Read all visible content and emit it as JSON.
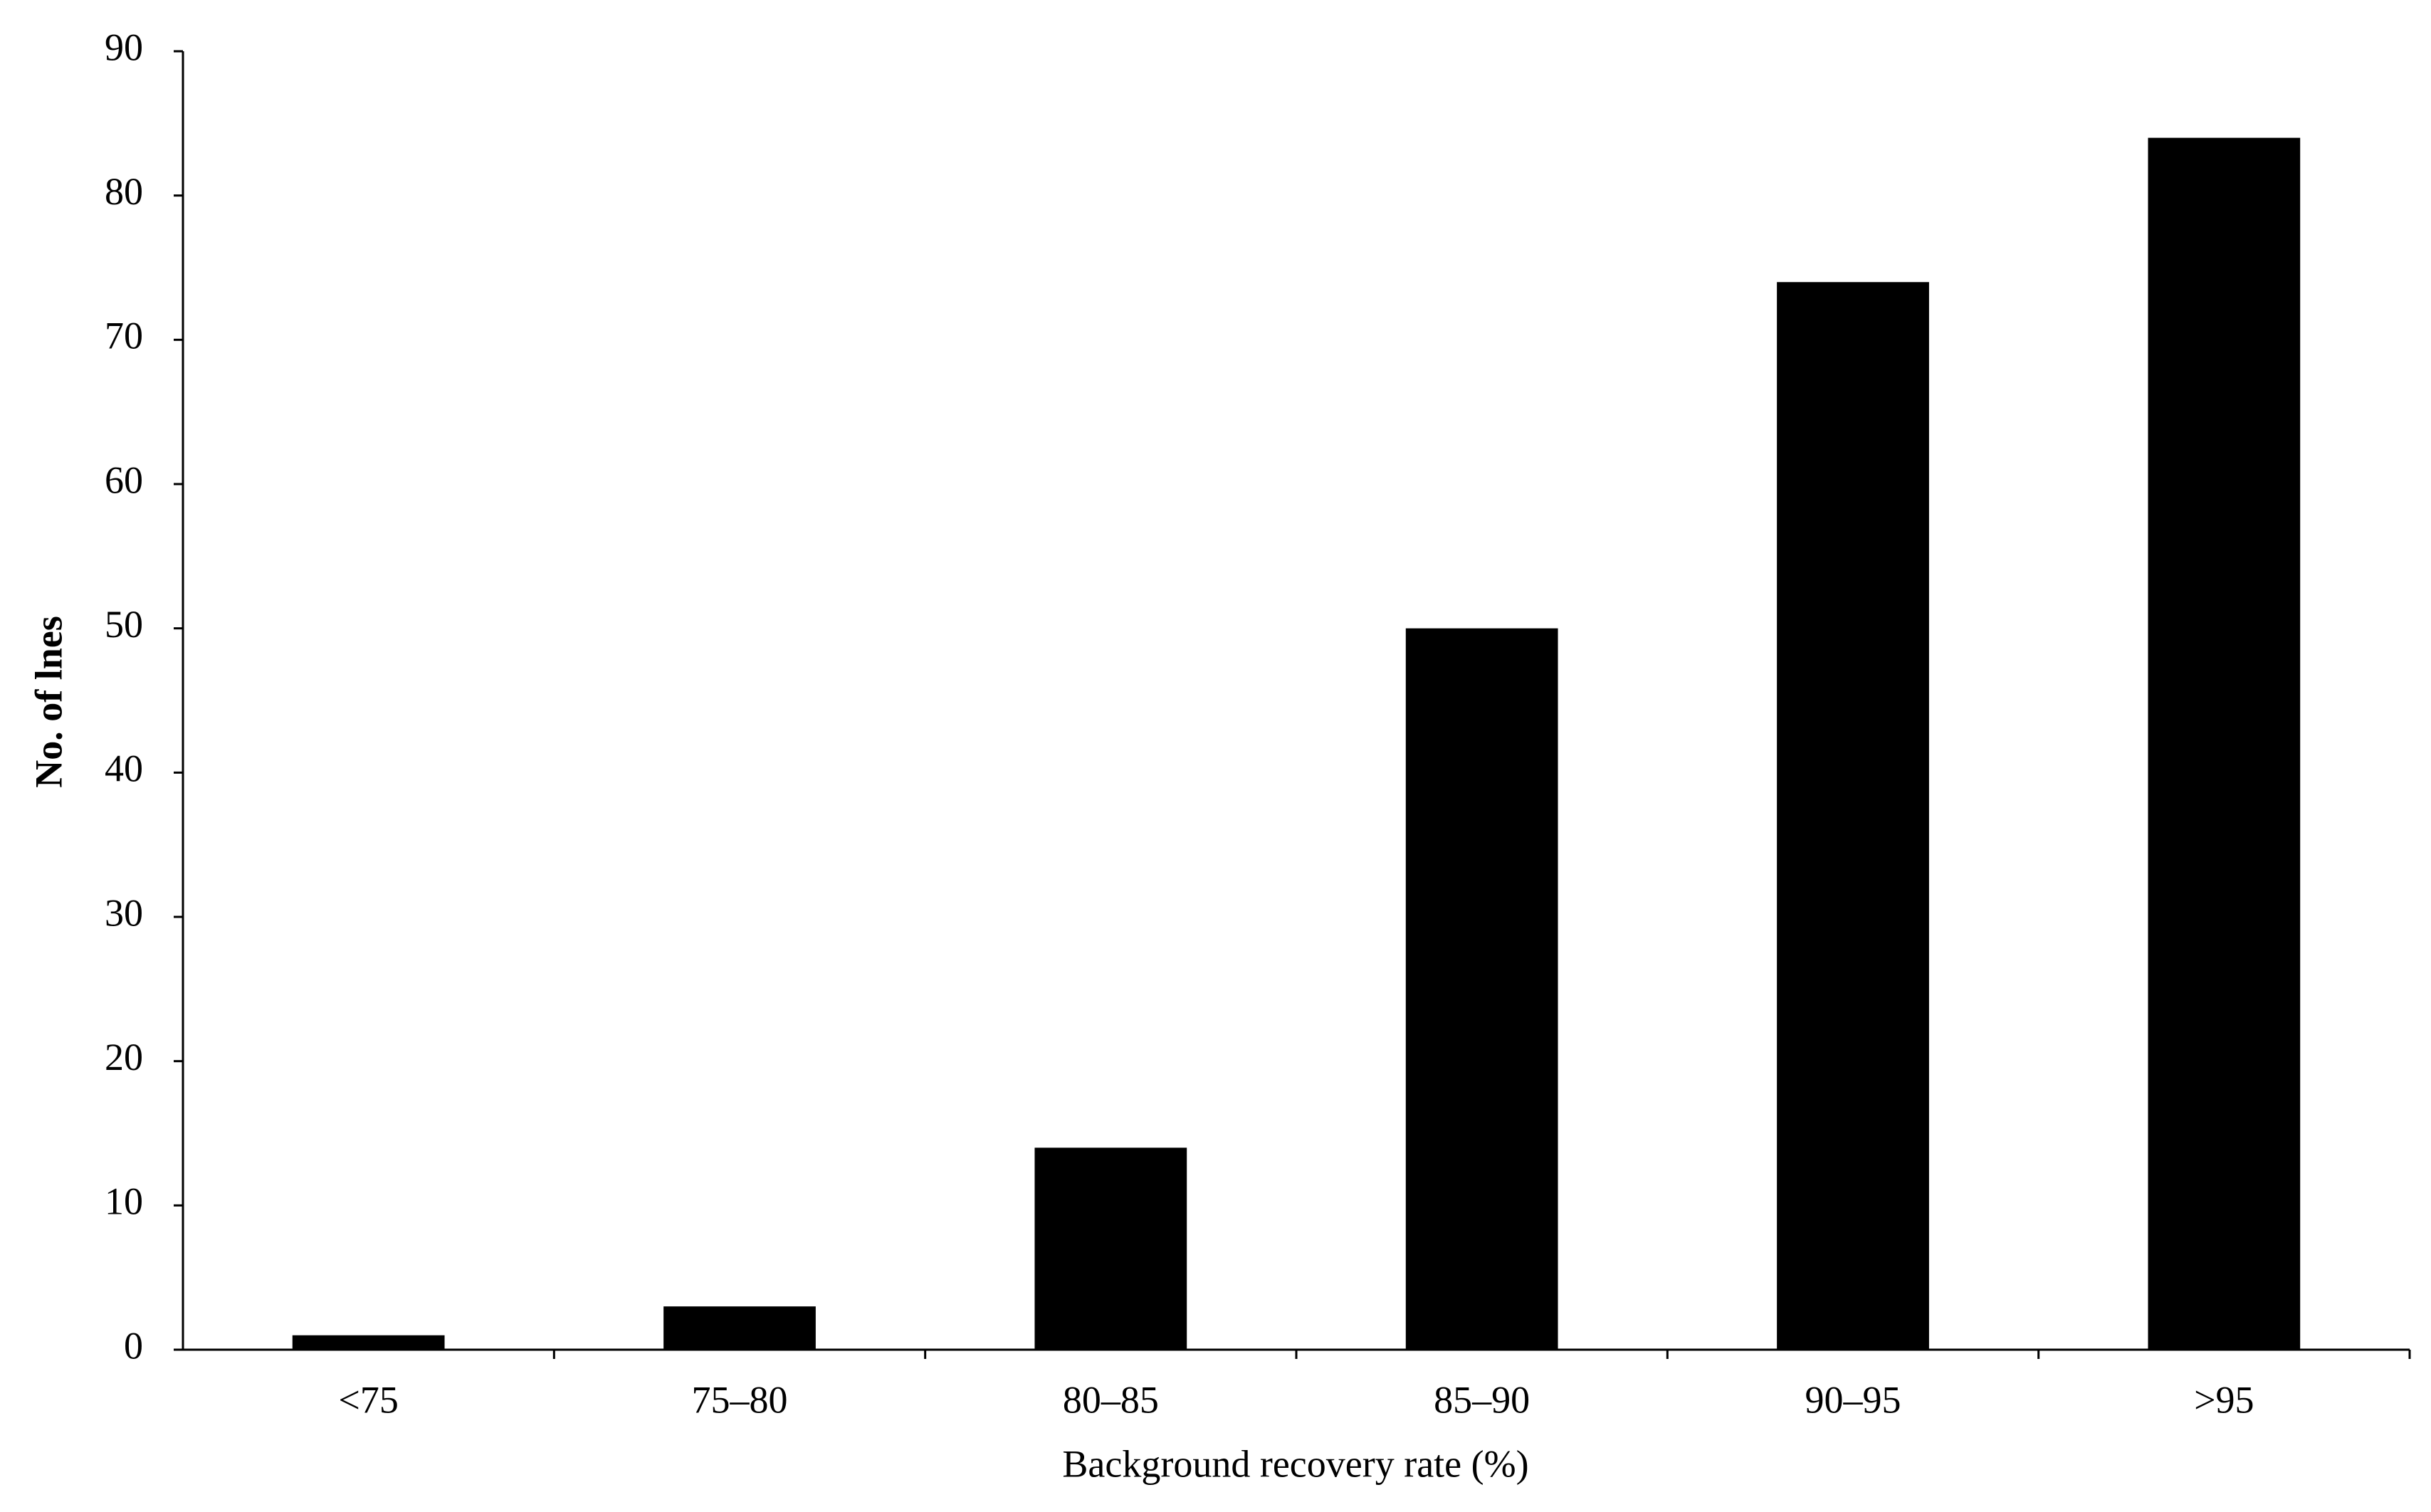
{
  "chart_data": {
    "type": "bar",
    "x_label": "Background recovery rate (%)",
    "y_label": "No. of lnes",
    "categories": [
      "<75",
      "75–80",
      "80–85",
      "85–90",
      "90–95",
      ">95"
    ],
    "values": [
      1,
      3,
      14,
      50,
      74,
      84
    ],
    "color": "#000000",
    "ylim": [
      0,
      90
    ],
    "yticks": [
      0,
      10,
      20,
      30,
      40,
      50,
      60,
      70,
      80,
      90
    ],
    "grid": false
  }
}
